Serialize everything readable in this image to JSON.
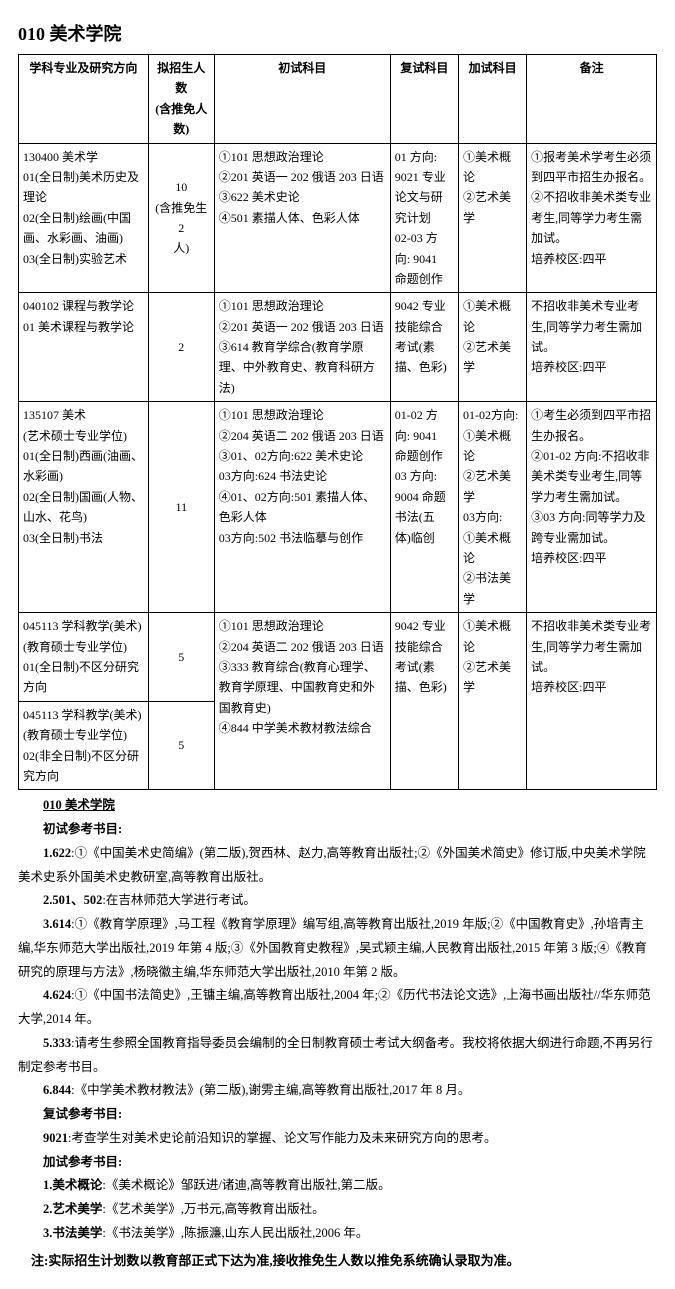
{
  "title": "010 美术学院",
  "headers": [
    "学科专业及研究方向",
    "拟招生人数\n(含推免人数)",
    "初试科目",
    "复试科目",
    "加试科目",
    "备注"
  ],
  "rows": [
    {
      "major": "130400 美术学\n01(全日制)美术历史及理论\n02(全日制)绘画(中国画、水彩画、油画)\n03(全日制)实验艺术",
      "quota": "10\n(含推免生2\n人)",
      "first": "①101 思想政治理论\n②201 英语一 202 俄语 203 日语\n③622 美术史论\n④501 素描人体、色彩人体",
      "second": "01 方向:\n9021 专业\n论文与研\n究计划\n02-03 方\n向: 9041\n命题创作",
      "extra": "①美术概论\n②艺术美学",
      "note": "①报考美术学考生必须到四平市招生办报名。\n②不招收非美术类专业考生,同等学力考生需加试。\n培养校区:四平"
    },
    {
      "major": "040102 课程与教学论\n01 美术课程与教学论",
      "quota": "2",
      "first": "①101 思想政治理论\n②201 英语一 202 俄语 203 日语\n③614 教育学综合(教育学原理、中外教育史、教育科研方法)",
      "second": "9042 专业\n技能综合\n考试(素\n描、色彩)",
      "extra": "①美术概论\n②艺术美学",
      "note": "不招收非美术专业考生,同等学力考生需加试。\n培养校区:四平"
    },
    {
      "major": "135107 美术\n(艺术硕士专业学位)\n01(全日制)西画(油画、水彩画)\n02(全日制)国画(人物、山水、花鸟)\n03(全日制)书法",
      "quota": "11",
      "first": "①101 思想政治理论\n②204 英语二 202 俄语 203 日语\n③01、02方向:622 美术史论\n   03方向:624 书法史论\n④01、02方向:501 素描人体、色彩人体\n   03方向:502 书法临摹与创作",
      "second": "01-02 方\n向: 9041\n命题创作\n03 方向:\n9004 命题\n书法(五\n体)临创",
      "extra": "01-02方向:\n①美术概论\n②艺术美学\n03方向:\n①美术概论\n②书法美学",
      "note": "①考生必须到四平市招生办报名。\n②01-02 方向:不招收非美术类专业考生,同等学力考生需加试。\n③03 方向:同等学力及跨专业需加试。\n培养校区:四平"
    },
    {
      "major": "045113 学科教学(美术)\n(教育硕士专业学位)\n01(全日制)不区分研究方向",
      "quota": "5",
      "first": "①101 思想政治理论\n②204 英语二 202 俄语 203 日语\n③333 教育综合(教育心理学、教育学原理、中国教育史和外国教育史)\n④844 中学美术教材教法综合",
      "second": "9042 专业\n技能综合\n考试(素\n描、色彩)",
      "extra": "①美术概论\n②艺术美学",
      "note": "不招收非美术类专业考生,同等学力考生需加试。\n培养校区:四平"
    },
    {
      "major": "045113 学科教学(美术)\n(教育硕士专业学位)\n02(非全日制)不区分研究方向",
      "quota": "5"
    }
  ],
  "ref_title": "010 美术学院",
  "ref_h1": "初试参考书目:",
  "ref1": "1.622:①《中国美术史简编》(第二版),贺西林、赵力,高等教育出版社;②《外国美术简史》修订版,中央美术学院美术史系外国美术史教研室,高等教育出版社。",
  "ref2": "2.501、502:在吉林师范大学进行考试。",
  "ref3": "3.614:①《教育学原理》,马工程《教育学原理》编写组,高等教育出版社,2019 年版;②《中国教育史》,孙培青主编,华东师范大学出版社,2019 年第 4 版;③《外国教育史教程》,吴式颖主编,人民教育出版社,2015 年第 3 版;④《教育研究的原理与方法》,杨晓徽主编,华东师范大学出版社,2010 年第 2 版。",
  "ref4": "4.624:①《中国书法简史》,王镛主编,高等教育出版社,2004 年;②《历代书法论文选》,上海书画出版社//华东师范大学,2014 年。",
  "ref5": "5.333:请考生参照全国教育指导委员会编制的全日制教育硕士考试大纲备考。我校将依据大纲进行命题,不再另行制定参考书目。",
  "ref6": "6.844:《中学美术教材教法》(第二版),谢雱主编,高等教育出版社,2017 年 8 月。",
  "ref_h2": "复试参考书目:",
  "ref7": "9021:考查学生对美术史论前沿知识的掌握、论文写作能力及未来研究方向的思考。",
  "ref_h3": "加试参考书目:",
  "ref8": "1.美术概论:《美术概论》邹跃进/诸迪,高等教育出版社,第二版。",
  "ref9": "2.艺术美学:《艺术美学》,万书元,高等教育出版社。",
  "ref10": "3.书法美学:《书法美学》,陈振濂,山东人民出版社,2006 年。",
  "footer": "注:实际招生计划数以教育部正式下达为准,接收推免生人数以推免系统确认录取为准。"
}
